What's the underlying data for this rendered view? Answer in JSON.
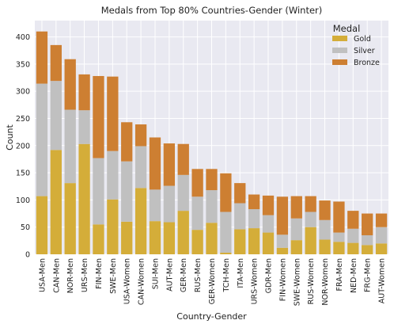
{
  "chart_data": {
    "type": "bar",
    "stacked": true,
    "title": "Medals from Top 80% Countries-Gender (Winter)",
    "xlabel": "Country-Gender",
    "ylabel": "Count",
    "ylim": [
      0,
      430
    ],
    "yticks": [
      0,
      50,
      100,
      150,
      200,
      250,
      300,
      350,
      400
    ],
    "grid": true,
    "legend": {
      "title": "Medal",
      "placement": "top-right"
    },
    "categories": [
      "USA-Men",
      "CAN-Men",
      "NOR-Men",
      "URS-Men",
      "FIN-Men",
      "SWE-Men",
      "USA-Women",
      "CAN-Women",
      "SUI-Men",
      "AUT-Men",
      "GER-Men",
      "RUS-Men",
      "GER-Women",
      "TCH-Men",
      "ITA-Men",
      "URS-Women",
      "GDR-Men",
      "FIN-Women",
      "SWE-Women",
      "RUS-Women",
      "NOR-Women",
      "FRA-Men",
      "NED-Men",
      "FRG-Men",
      "AUT-Women"
    ],
    "series": [
      {
        "name": "Gold",
        "color": "#d4ad39",
        "values": [
          107,
          192,
          131,
          203,
          55,
          101,
          60,
          122,
          61,
          59,
          80,
          45,
          58,
          3,
          46,
          48,
          40,
          12,
          26,
          50,
          27,
          23,
          21,
          17,
          20
        ]
      },
      {
        "name": "Silver",
        "color": "#c0c0c0",
        "values": [
          207,
          127,
          135,
          62,
          122,
          89,
          111,
          77,
          58,
          67,
          66,
          61,
          60,
          75,
          48,
          35,
          32,
          24,
          40,
          28,
          36,
          17,
          26,
          18,
          30
        ]
      },
      {
        "name": "Bronze",
        "color": "#cd7f32",
        "values": [
          96,
          66,
          93,
          66,
          151,
          137,
          72,
          40,
          96,
          78,
          57,
          51,
          39,
          71,
          37,
          27,
          36,
          70,
          41,
          29,
          36,
          57,
          33,
          40,
          25
        ]
      }
    ]
  }
}
